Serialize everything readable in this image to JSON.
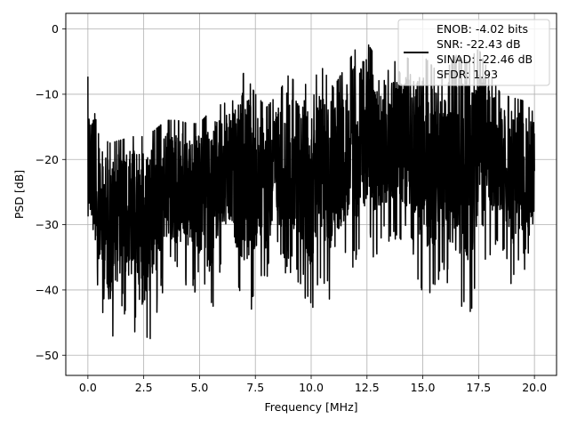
{
  "chart_data": {
    "type": "line",
    "title": "",
    "xlabel": "Frequency [MHz]",
    "ylabel": "PSD [dB]",
    "xlim": [
      -0.99,
      20.99
    ],
    "ylim": [
      -53.1,
      2.4
    ],
    "xticks": [
      0.0,
      2.5,
      5.0,
      7.5,
      10.0,
      12.5,
      15.0,
      17.5,
      20.0
    ],
    "xtick_labels": [
      "0.0",
      "2.5",
      "5.0",
      "7.5",
      "10.0",
      "12.5",
      "15.0",
      "17.5",
      "20.0"
    ],
    "yticks": [
      0,
      -10,
      -20,
      -30,
      -40,
      -50
    ],
    "ytick_labels": [
      "0",
      "−10",
      "−20",
      "−30",
      "−40",
      "−50"
    ],
    "grid": true,
    "line_color": "#000000",
    "legend": {
      "placement": "top-right",
      "entries": [
        "ENOB: -4.02 bits",
        "SNR: -22.43 dB",
        "SINAD: -22.46 dB",
        "SFDR: 1.93"
      ]
    },
    "envelope": {
      "description_free_values": true,
      "x": [
        0.0,
        0.5,
        1.0,
        1.5,
        2.0,
        2.5,
        3.0,
        3.5,
        4.0,
        4.5,
        5.0,
        5.5,
        6.0,
        6.5,
        7.0,
        7.5,
        8.0,
        8.5,
        9.0,
        9.5,
        10.0,
        10.5,
        11.0,
        11.5,
        12.0,
        12.5,
        13.0,
        13.5,
        14.0,
        14.5,
        15.0,
        15.5,
        16.0,
        16.5,
        17.0,
        17.5,
        18.0,
        18.5,
        19.0,
        19.5,
        20.0
      ],
      "upper": [
        -7.3,
        -16.5,
        -17.5,
        -17.0,
        -16.5,
        -16.5,
        -15.5,
        -14.0,
        -14.0,
        -14.5,
        -14.5,
        -12.5,
        -11.5,
        -11.0,
        -6.5,
        -10.0,
        -12.0,
        -10.0,
        -7.0,
        -9.0,
        -8.0,
        -6.0,
        -9.0,
        -6.0,
        -3.0,
        -2.0,
        -5.0,
        -6.5,
        -3.5,
        -5.0,
        -4.0,
        -6.0,
        -6.5,
        -4.0,
        -5.0,
        -3.0,
        -7.0,
        -10.0,
        -10.5,
        -11.0,
        -13.0
      ],
      "lower": [
        -35.0,
        -41.0,
        -50.0,
        -43.0,
        -46.0,
        -50.8,
        -46.0,
        -38.0,
        -39.0,
        -40.0,
        -41.0,
        -45.0,
        -37.0,
        -38.0,
        -46.5,
        -42.0,
        -40.0,
        -36.0,
        -38.0,
        -39.0,
        -45.0,
        -40.0,
        -43.0,
        -36.0,
        -37.0,
        -35.0,
        -35.0,
        -33.0,
        -34.0,
        -34.0,
        -42.0,
        -43.0,
        -38.0,
        -45.0,
        -46.0,
        -39.0,
        -37.0,
        -33.0,
        -40.0,
        -38.0,
        -33.0
      ]
    }
  }
}
